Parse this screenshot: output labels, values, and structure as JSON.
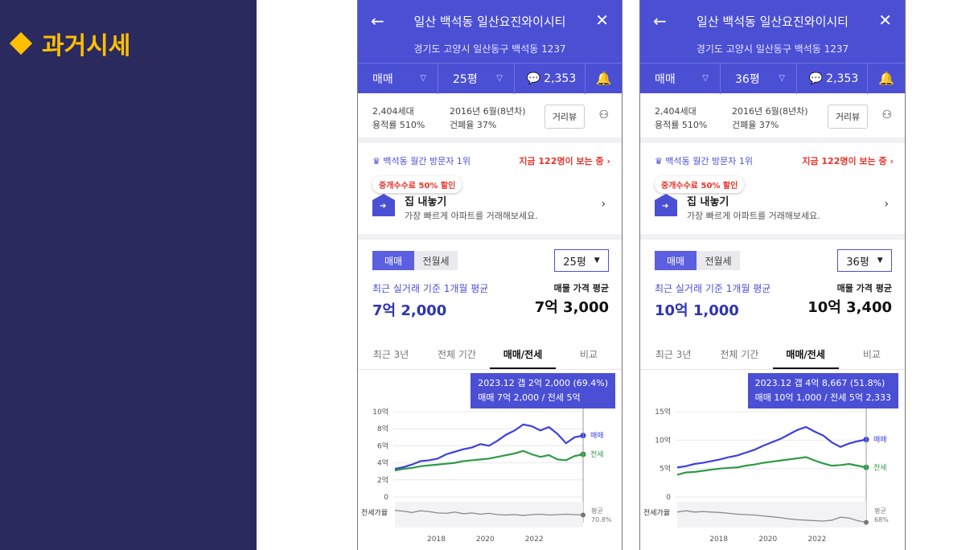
{
  "slide": {
    "title": "과거시세"
  },
  "phones": [
    {
      "header": {
        "title": "일산 백석동 일산요진와이시티",
        "address": "경기도 고양시 일산동구 백석동 1237"
      },
      "selbar": {
        "trade_type": "매매",
        "size": "25평",
        "comment_count": "2,353"
      },
      "info": {
        "households": "2,404세대",
        "far": "용적률 510%",
        "built": "2016년 6월(8년차)",
        "bcr": "건폐율 37%",
        "street_view": "거리뷰"
      },
      "visit": {
        "rank": "백석동 월간 방문자 1위",
        "viewers": "지금 122명이 보는 중"
      },
      "sale": {
        "badge": "중개수수료 50% 할인",
        "title": "집 내놓기",
        "desc": "가장 빠르게 아파트를 거래해보세요."
      },
      "price": {
        "toggle_on": "매매",
        "toggle_off": "전월세",
        "size": "25평",
        "recent_label": "최근 실거래 기준 1개월 평균",
        "recent_value": "7억 2,000",
        "listing_label": "매물 가격 평균",
        "listing_value": "7억 3,000"
      },
      "tabs": [
        "최근 3년",
        "전체 기간",
        "매매/전세",
        "비교"
      ],
      "tooltip": {
        "line1": "2023.12  갭 2억 2,000 (69.4%)",
        "line2": "매매 7억 2,000 / 전세 5억"
      },
      "chart_data": {
        "type": "line",
        "y_unit": "억",
        "yticks": [
          "10억",
          "8억",
          "6억",
          "4억",
          "2억",
          "0"
        ],
        "ylim": [
          0,
          10
        ],
        "xticks": [
          "2018",
          "2020",
          "2022"
        ],
        "series": [
          {
            "name": "매매",
            "color": "#3b3fe0",
            "values": [
              3.3,
              3.5,
              3.8,
              4.2,
              4.3,
              4.5,
              5.0,
              5.3,
              5.6,
              5.8,
              6.2,
              6.0,
              6.6,
              7.3,
              7.8,
              8.5,
              8.3,
              7.8,
              8.2,
              7.4,
              6.3,
              7.0,
              7.2
            ]
          },
          {
            "name": "전세",
            "color": "#2e9a45",
            "values": [
              3.1,
              3.3,
              3.4,
              3.6,
              3.7,
              3.8,
              3.9,
              4.0,
              4.2,
              4.3,
              4.4,
              4.5,
              4.7,
              4.9,
              5.1,
              5.4,
              5.0,
              4.7,
              4.9,
              4.4,
              4.3,
              4.8,
              5.0
            ]
          }
        ],
        "ratio_label": "전세가율",
        "ratio_avg_label": "평균",
        "ratio_avg_value": "70.8%",
        "ratio_values": [
          80,
          78,
          75,
          79,
          77,
          74,
          73,
          76,
          72,
          74,
          71,
          73,
          70,
          69,
          70,
          68,
          70,
          71,
          69,
          70,
          71,
          70,
          69
        ]
      }
    },
    {
      "header": {
        "title": "일산 백석동 일산요진와이시티",
        "address": "경기도 고양시 일산동구 백석동 1237"
      },
      "selbar": {
        "trade_type": "매매",
        "size": "36평",
        "comment_count": "2,353"
      },
      "info": {
        "households": "2,404세대",
        "far": "용적률 510%",
        "built": "2016년 6월(8년차)",
        "bcr": "건폐율 37%",
        "street_view": "거리뷰"
      },
      "visit": {
        "rank": "백석동 월간 방문자 1위",
        "viewers": "지금 122명이 보는 중"
      },
      "sale": {
        "badge": "중개수수료 50% 할인",
        "title": "집 내놓기",
        "desc": "가장 빠르게 아파트를 거래해보세요."
      },
      "price": {
        "toggle_on": "매매",
        "toggle_off": "전월세",
        "size": "36평",
        "recent_label": "최근 실거래 기준 1개월 평균",
        "recent_value": "10억 1,000",
        "listing_label": "매물 가격 평균",
        "listing_value": "10억 3,400"
      },
      "tabs": [
        "최근 3년",
        "전체 기간",
        "매매/전세",
        "비교"
      ],
      "tooltip": {
        "line1": "2023.12  갭 4억 8,667 (51.8%)",
        "line2": "매매 10억 1,000 / 전세 5억 2,333"
      },
      "chart_data": {
        "type": "line",
        "y_unit": "억",
        "yticks": [
          "15억",
          "10억",
          "5억",
          "0"
        ],
        "ylim": [
          0,
          15
        ],
        "xticks": [
          "2018",
          "2020",
          "2022"
        ],
        "series": [
          {
            "name": "매매",
            "color": "#3b3fe0",
            "values": [
              5.2,
              5.4,
              5.8,
              6.0,
              6.3,
              6.6,
              7.0,
              7.3,
              7.8,
              8.3,
              9.0,
              9.6,
              10.2,
              11.0,
              11.8,
              12.3,
              11.5,
              10.8,
              9.6,
              8.8,
              9.4,
              9.8,
              10.1
            ]
          },
          {
            "name": "전세",
            "color": "#2e9a45",
            "values": [
              3.9,
              4.3,
              4.4,
              4.6,
              4.8,
              5.0,
              5.1,
              5.2,
              5.5,
              5.7,
              6.0,
              6.2,
              6.4,
              6.6,
              6.8,
              7.0,
              6.4,
              5.9,
              5.5,
              5.6,
              5.8,
              5.5,
              5.2
            ]
          }
        ],
        "ratio_label": "전세가율",
        "ratio_avg_label": "평균",
        "ratio_avg_value": "68%",
        "ratio_values": [
          76,
          79,
          76,
          77,
          76,
          75,
          73,
          71,
          70,
          69,
          67,
          65,
          63,
          60,
          58,
          57,
          56,
          55,
          57,
          64,
          62,
          56,
          52
        ]
      }
    }
  ]
}
